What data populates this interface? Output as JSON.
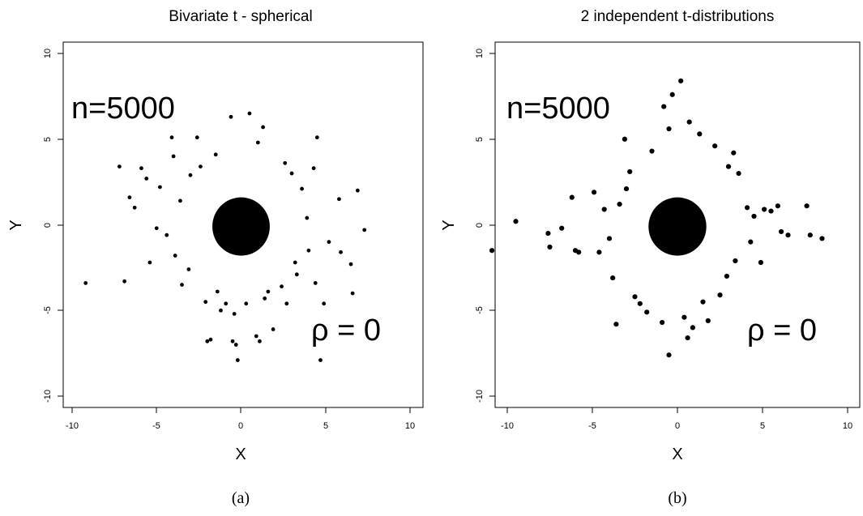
{
  "chart_data": [
    {
      "type": "scatter",
      "title": "Bivariate t - spherical",
      "xlabel": "X",
      "ylabel": "Y",
      "xlim": [
        -10,
        10
      ],
      "ylim": [
        -10,
        10
      ],
      "xticks": [
        "-10",
        "-5",
        "0",
        "5",
        "10"
      ],
      "yticks": [
        "-10",
        "-5",
        "0",
        "5",
        "10"
      ],
      "annotations": {
        "n": "n=5000",
        "rho": "ρ = 0"
      },
      "caption": "(a)",
      "series": [
        {
          "points": [
            [
              -9.2,
              -3.4
            ],
            [
              -7.2,
              3.4
            ],
            [
              -6.9,
              -3.3
            ],
            [
              -6.3,
              1.0
            ],
            [
              -5.9,
              3.3
            ],
            [
              -5.6,
              2.7
            ],
            [
              -5.4,
              -2.2
            ],
            [
              -4.1,
              5.1
            ],
            [
              -4.0,
              4.0
            ],
            [
              -3.9,
              -1.8
            ],
            [
              -3.5,
              -3.5
            ],
            [
              -3.0,
              2.9
            ],
            [
              -2.6,
              5.1
            ],
            [
              -2.1,
              -4.5
            ],
            [
              -2.0,
              -6.8
            ],
            [
              -1.8,
              -6.7
            ],
            [
              -1.5,
              4.1
            ],
            [
              -1.4,
              -3.9
            ],
            [
              -0.9,
              -4.6
            ],
            [
              -0.6,
              6.3
            ],
            [
              -0.5,
              -6.8
            ],
            [
              -0.4,
              -5.2
            ],
            [
              -0.3,
              -7.0
            ],
            [
              -0.2,
              -7.9
            ],
            [
              0.3,
              -4.6
            ],
            [
              0.5,
              6.5
            ],
            [
              0.9,
              -6.5
            ],
            [
              1.1,
              -6.8
            ],
            [
              1.3,
              5.7
            ],
            [
              1.4,
              -4.3
            ],
            [
              1.6,
              -3.9
            ],
            [
              1.9,
              -6.1
            ],
            [
              2.4,
              -3.6
            ],
            [
              2.7,
              -4.6
            ],
            [
              3.0,
              3.0
            ],
            [
              3.3,
              -2.9
            ],
            [
              4.0,
              -1.5
            ],
            [
              4.3,
              3.3
            ],
            [
              4.5,
              5.1
            ],
            [
              4.7,
              -7.9
            ],
            [
              4.9,
              -4.6
            ],
            [
              5.2,
              -1.0
            ],
            [
              5.8,
              1.5
            ],
            [
              5.9,
              -1.6
            ],
            [
              6.5,
              -2.3
            ],
            [
              6.6,
              -4.0
            ],
            [
              6.9,
              2.0
            ],
            [
              7.3,
              -0.3
            ],
            [
              -4.8,
              2.2
            ],
            [
              -4.4,
              -0.6
            ],
            [
              -3.6,
              1.4
            ],
            [
              -3.1,
              -2.6
            ],
            [
              3.6,
              2.1
            ],
            [
              3.9,
              0.4
            ],
            [
              3.2,
              -2.2
            ],
            [
              2.6,
              3.6
            ],
            [
              -2.4,
              3.4
            ],
            [
              -1.2,
              -5.0
            ],
            [
              1.0,
              4.8
            ],
            [
              4.4,
              -3.4
            ],
            [
              -6.6,
              1.6
            ],
            [
              -5.0,
              -0.2
            ]
          ]
        }
      ]
    },
    {
      "type": "scatter",
      "title": "2 independent t-distributions",
      "xlabel": "X",
      "ylabel": "Y",
      "xlim": [
        -10,
        10
      ],
      "ylim": [
        -10,
        10
      ],
      "xticks": [
        "-10",
        "-5",
        "0",
        "5",
        "10"
      ],
      "yticks": [
        "-10",
        "-5",
        "0",
        "5",
        "10"
      ],
      "annotations": {
        "n": "n=5000",
        "rho": "ρ = 0"
      },
      "caption": "(b)",
      "series": [
        {
          "points": [
            [
              -10.9,
              -1.5
            ],
            [
              -9.5,
              0.2
            ],
            [
              -7.6,
              -0.5
            ],
            [
              -7.5,
              -1.3
            ],
            [
              -6.8,
              -0.2
            ],
            [
              -6.2,
              1.6
            ],
            [
              -6.0,
              -1.5
            ],
            [
              -5.8,
              -1.6
            ],
            [
              -4.9,
              1.9
            ],
            [
              -4.6,
              -1.6
            ],
            [
              -4.0,
              -0.8
            ],
            [
              -3.6,
              -5.8
            ],
            [
              -3.4,
              1.2
            ],
            [
              -3.0,
              2.1
            ],
            [
              -3.1,
              5.0
            ],
            [
              -2.5,
              -4.2
            ],
            [
              -1.8,
              -5.1
            ],
            [
              -0.9,
              -5.7
            ],
            [
              -0.5,
              -7.6
            ],
            [
              -0.3,
              7.6
            ],
            [
              -0.5,
              5.6
            ],
            [
              0.2,
              8.4
            ],
            [
              0.4,
              -5.4
            ],
            [
              0.7,
              6.0
            ],
            [
              0.9,
              -6.0
            ],
            [
              1.3,
              5.3
            ],
            [
              1.8,
              -5.6
            ],
            [
              2.2,
              4.6
            ],
            [
              2.5,
              -4.1
            ],
            [
              3.0,
              3.4
            ],
            [
              3.3,
              4.2
            ],
            [
              3.4,
              -2.1
            ],
            [
              4.1,
              1.0
            ],
            [
              4.5,
              0.5
            ],
            [
              4.9,
              -2.2
            ],
            [
              5.1,
              0.9
            ],
            [
              5.5,
              0.8
            ],
            [
              5.9,
              1.1
            ],
            [
              6.1,
              -0.4
            ],
            [
              6.5,
              -0.6
            ],
            [
              7.6,
              1.1
            ],
            [
              7.8,
              -0.6
            ],
            [
              8.5,
              -0.8
            ],
            [
              -2.8,
              3.1
            ],
            [
              2.9,
              -3.0
            ],
            [
              -1.5,
              4.3
            ],
            [
              1.5,
              -4.5
            ],
            [
              -4.3,
              0.9
            ],
            [
              4.3,
              -1.0
            ],
            [
              -3.8,
              -3.1
            ],
            [
              3.6,
              3.0
            ],
            [
              -0.8,
              6.9
            ],
            [
              0.6,
              -6.6
            ],
            [
              -2.2,
              -4.6
            ]
          ]
        }
      ]
    }
  ]
}
